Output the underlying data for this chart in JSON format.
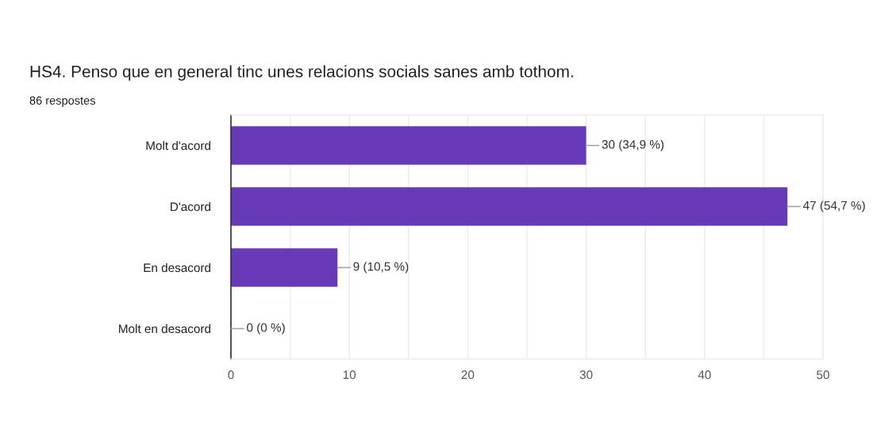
{
  "chart_data": {
    "type": "bar",
    "orientation": "horizontal",
    "title": "HS4. Penso que en general tinc unes relacions socials sanes amb tothom.",
    "subtitle": "86 respostes",
    "categories": [
      "Molt d'acord",
      "D'acord",
      "En desacord",
      "Molt en desacord"
    ],
    "values": [
      30,
      47,
      9,
      0
    ],
    "value_labels": [
      "30 (34,9 %)",
      "47 (54,7 %)",
      "9 (10,5 %)",
      "0 (0 %)"
    ],
    "color": "#673ab7",
    "xlim": [
      0,
      50
    ],
    "xticks": [
      0,
      {
        "value": 5,
        "label": null
      },
      10,
      {
        "value": 15,
        "label": null
      },
      20,
      {
        "value": 25,
        "label": null
      },
      30,
      {
        "value": 35,
        "label": null
      },
      40,
      {
        "value": 45,
        "label": null
      },
      50
    ],
    "grid": "x",
    "legend": false
  }
}
